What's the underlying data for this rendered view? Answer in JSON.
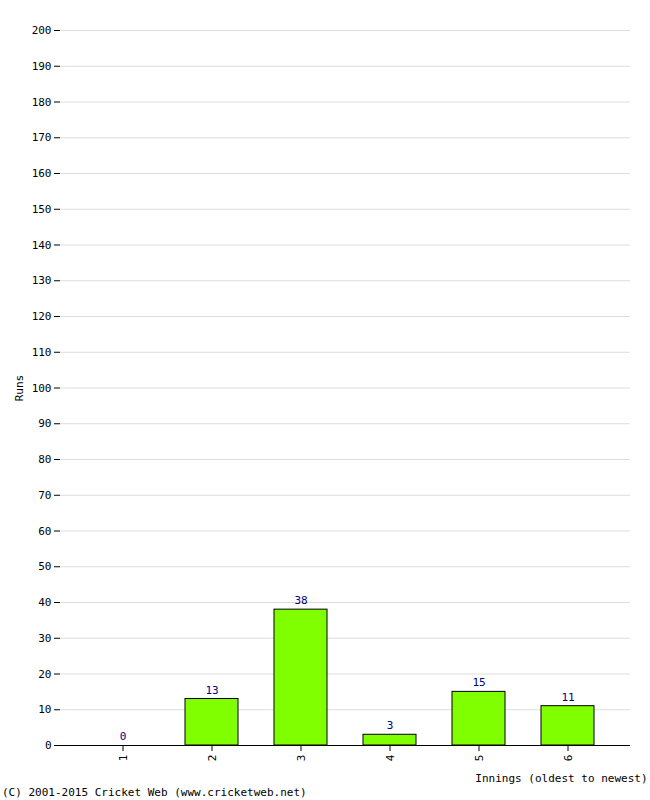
{
  "chart_data": {
    "type": "bar",
    "categories": [
      "1",
      "2",
      "3",
      "4",
      "5",
      "6"
    ],
    "values": [
      0,
      13,
      38,
      3,
      15,
      11
    ],
    "color": "#80ff00",
    "x_label": "Innings (oldest to newest)",
    "y_label": "Runs",
    "ylim": [
      0,
      200
    ],
    "yticks": [
      0,
      10,
      20,
      30,
      40,
      50,
      60,
      70,
      80,
      90,
      100,
      110,
      120,
      130,
      140,
      150,
      160,
      170,
      180,
      190,
      200
    ],
    "grid": true,
    "data_labels": true,
    "caption": "(C) 2001-2015 Cricket Web (www.cricketweb.net)"
  }
}
